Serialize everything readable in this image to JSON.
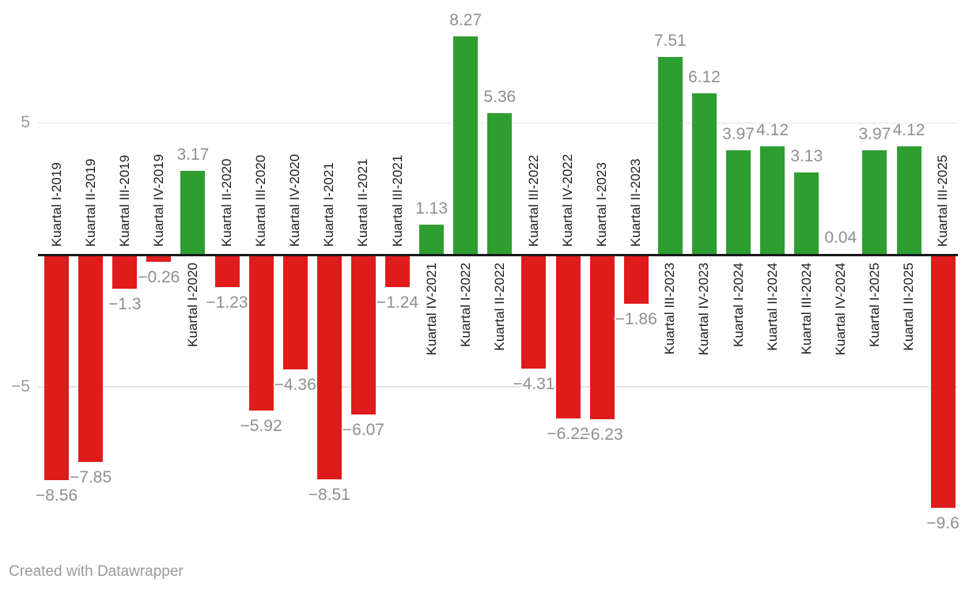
{
  "chart_data": {
    "type": "bar",
    "title": "",
    "categories": [
      "Kuartal I-2019",
      "Kuartal II-2019",
      "Kuartal III-2019",
      "Kuartal IV-2019",
      "Kuartal I-2020",
      "Kuartal II-2020",
      "Kuartal III-2020",
      "Kuartal IV-2020",
      "Kuartal I-2021",
      "Kuartal II-2021",
      "Kuartal III-2021",
      "Kuartal IV-2021",
      "Kuartal I-2022",
      "Kuartal II-2022",
      "Kuartal III-2022",
      "Kuartal IV-2022",
      "Kuartal I-2023",
      "Kuartal II-2023",
      "Kuartal III-2023",
      "Kuartal IV-2023",
      "Kuartal I-2024",
      "Kuartal II-2024",
      "Kuartal III-2024",
      "Kuartal IV-2024",
      "Kuartal I-2025",
      "Kuartal II-2025",
      "Kuartal III-2025"
    ],
    "values": [
      -8.56,
      -7.85,
      -1.3,
      -0.26,
      3.17,
      -1.23,
      -5.92,
      -4.36,
      -8.51,
      -6.07,
      -1.24,
      1.13,
      8.27,
      5.36,
      -4.31,
      -6.22,
      -6.23,
      -1.86,
      7.51,
      6.12,
      3.97,
      4.12,
      3.13,
      0.04,
      3.97,
      4.12,
      -9.6
    ],
    "value_labels": [
      "−8.56",
      "−7.85",
      "−1.3",
      "−0.26",
      "3.17",
      "−1.23",
      "−5.92",
      "−4.36",
      "−8.51",
      "−6.07",
      "−1.24",
      "1.13",
      "8.27",
      "5.36",
      "−4.31",
      "−6.22",
      "−6.23",
      "−1.86",
      "7.51",
      "6.12",
      "3.97",
      "4.12",
      "3.13",
      "0.04",
      "3.97",
      "4.12",
      "−9.6"
    ],
    "xlabel": "",
    "ylabel": "",
    "ylim": [
      -10.5,
      9.7
    ],
    "y_axis": {
      "ticks": [
        {
          "value": 5,
          "label": "5"
        },
        {
          "value": -5,
          "label": "−5"
        }
      ],
      "zero_line": true
    },
    "grid": true,
    "legend": false,
    "colors": {
      "positive_bar": "#2f9e31",
      "negative_bar": "#e01b1c",
      "zero_line": "#18191c",
      "gridline": "#e6e6e6",
      "value_label": "#8f8f8f",
      "category_label": "#1d1d1f",
      "tick_label": "#9a9a9a"
    }
  },
  "footer": {
    "credit": "Created with Datawrapper"
  }
}
